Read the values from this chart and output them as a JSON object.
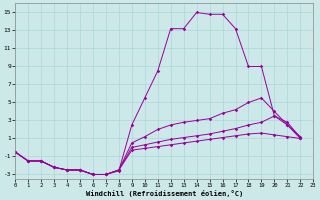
{
  "xlabel": "Windchill (Refroidissement éolien,°C)",
  "bg_color": "#cce8e8",
  "line_color": "#990099",
  "grid_color": "#aad8d8",
  "xlim": [
    0,
    23
  ],
  "ylim": [
    -3.5,
    16
  ],
  "yticks": [
    -3,
    -1,
    1,
    3,
    5,
    7,
    9,
    11,
    13,
    15
  ],
  "xticks": [
    0,
    1,
    2,
    3,
    4,
    5,
    6,
    7,
    8,
    9,
    10,
    11,
    12,
    13,
    14,
    15,
    16,
    17,
    18,
    19,
    20,
    21,
    22,
    23
  ],
  "x": [
    0,
    1,
    2,
    3,
    4,
    5,
    6,
    7,
    8,
    9,
    10,
    11,
    12,
    13,
    14,
    15,
    16,
    17,
    18,
    19,
    20,
    21,
    22
  ],
  "series1": [
    -0.5,
    -1.5,
    -1.5,
    -2.2,
    -2.5,
    -2.5,
    -3.0,
    -3.0,
    -2.6,
    2.5,
    5.5,
    8.5,
    13.2,
    13.2,
    15.0,
    14.8,
    14.8,
    13.2,
    9.0,
    9.0,
    3.5,
    2.5,
    1.0
  ],
  "series2": [
    -0.5,
    -1.5,
    -1.5,
    -2.2,
    -2.5,
    -2.5,
    -3.0,
    -3.0,
    -2.5,
    0.5,
    1.2,
    2.0,
    2.5,
    2.8,
    3.0,
    3.2,
    3.8,
    4.2,
    5.0,
    5.5,
    4.0,
    2.5,
    1.2
  ],
  "series3": [
    -0.5,
    -1.5,
    -1.5,
    -2.2,
    -2.5,
    -2.5,
    -3.0,
    -3.0,
    -2.5,
    0.0,
    0.3,
    0.6,
    0.9,
    1.1,
    1.3,
    1.5,
    1.8,
    2.1,
    2.5,
    2.8,
    3.5,
    2.8,
    1.1
  ],
  "series4": [
    -0.5,
    -1.5,
    -1.5,
    -2.2,
    -2.5,
    -2.5,
    -3.0,
    -3.0,
    -2.5,
    -0.3,
    -0.1,
    0.1,
    0.3,
    0.5,
    0.7,
    0.9,
    1.1,
    1.3,
    1.5,
    1.6,
    1.4,
    1.2,
    1.0
  ]
}
